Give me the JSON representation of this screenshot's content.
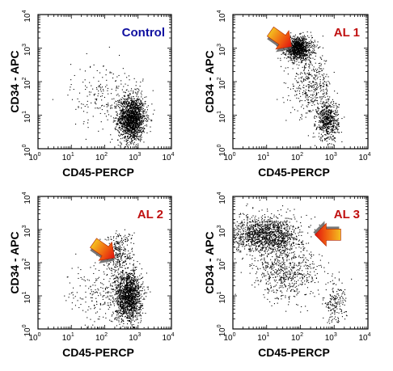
{
  "chart_data": [
    {
      "type": "scatter",
      "title": "Control",
      "title_color": "#1010a0",
      "xlabel": "CD45-PERCP",
      "ylabel": "CD34 - APC",
      "x_scale": "log",
      "y_scale": "log",
      "xlim": [
        1,
        10000
      ],
      "ylim": [
        1,
        10000
      ],
      "x_ticks": [
        {
          "base": "10",
          "exp": "0"
        },
        {
          "base": "10",
          "exp": "1"
        },
        {
          "base": "10",
          "exp": "2"
        },
        {
          "base": "10",
          "exp": "3"
        },
        {
          "base": "10",
          "exp": "4"
        }
      ],
      "y_ticks": [
        {
          "base": "10",
          "exp": "0"
        },
        {
          "base": "10",
          "exp": "1"
        },
        {
          "base": "10",
          "exp": "2"
        },
        {
          "base": "10",
          "exp": "3"
        },
        {
          "base": "10",
          "exp": "4"
        }
      ],
      "populations": [
        {
          "center": [
            630,
            8
          ],
          "spread": [
            0.2,
            0.33
          ],
          "share": 0.88,
          "description": "CD45-bright, CD34-negative leukocytes"
        },
        {
          "center": [
            120,
            40
          ],
          "spread": [
            0.55,
            0.5
          ],
          "share": 0.12,
          "description": "scattered events"
        }
      ],
      "arrow": null
    },
    {
      "type": "scatter",
      "title": "AL 1",
      "title_color": "#c01010",
      "xlabel": "CD45-PERCP",
      "ylabel": "CD34 - APC",
      "x_scale": "log",
      "y_scale": "log",
      "xlim": [
        1,
        10000
      ],
      "ylim": [
        1,
        10000
      ],
      "x_ticks": [
        {
          "base": "10",
          "exp": "0"
        },
        {
          "base": "10",
          "exp": "1"
        },
        {
          "base": "10",
          "exp": "2"
        },
        {
          "base": "10",
          "exp": "3"
        },
        {
          "base": "10",
          "exp": "4"
        }
      ],
      "y_ticks": [
        {
          "base": "10",
          "exp": "0"
        },
        {
          "base": "10",
          "exp": "1"
        },
        {
          "base": "10",
          "exp": "2"
        },
        {
          "base": "10",
          "exp": "3"
        },
        {
          "base": "10",
          "exp": "4"
        }
      ],
      "populations": [
        {
          "center": [
            85,
            1000
          ],
          "spread": [
            0.2,
            0.17
          ],
          "share": 0.5,
          "description": "CD45-dim, CD34-positive blasts"
        },
        {
          "center": [
            200,
            80
          ],
          "spread": [
            0.3,
            0.45
          ],
          "share": 0.2,
          "description": "bridging events"
        },
        {
          "center": [
            630,
            7
          ],
          "spread": [
            0.16,
            0.3
          ],
          "share": 0.3,
          "description": "CD45-bright, CD34-negative cells"
        }
      ],
      "arrow": {
        "tip": [
          50,
          1200
        ],
        "direction": "down-right"
      }
    },
    {
      "type": "scatter",
      "title": "AL 2",
      "title_color": "#c01010",
      "xlabel": "CD45-PERCP",
      "ylabel": "CD34 - APC",
      "x_scale": "log",
      "y_scale": "log",
      "xlim": [
        1,
        10000
      ],
      "ylim": [
        1,
        10000
      ],
      "x_ticks": [
        {
          "base": "10",
          "exp": "0"
        },
        {
          "base": "10",
          "exp": "1"
        },
        {
          "base": "10",
          "exp": "2"
        },
        {
          "base": "10",
          "exp": "3"
        },
        {
          "base": "10",
          "exp": "4"
        }
      ],
      "y_ticks": [
        {
          "base": "10",
          "exp": "0"
        },
        {
          "base": "10",
          "exp": "1"
        },
        {
          "base": "10",
          "exp": "2"
        },
        {
          "base": "10",
          "exp": "3"
        },
        {
          "base": "10",
          "exp": "4"
        }
      ],
      "populations": [
        {
          "center": [
            500,
            10
          ],
          "spread": [
            0.2,
            0.38
          ],
          "share": 0.75,
          "description": "CD45-bright, CD34-negative cells"
        },
        {
          "center": [
            250,
            200
          ],
          "spread": [
            0.22,
            0.35
          ],
          "share": 0.15,
          "description": "CD45-dim, CD34-positive blasts"
        },
        {
          "center": [
            60,
            10
          ],
          "spread": [
            0.45,
            0.5
          ],
          "share": 0.1,
          "description": "scattered events"
        }
      ],
      "arrow": {
        "tip": [
          180,
          150
        ],
        "direction": "down-right"
      }
    },
    {
      "type": "scatter",
      "title": "AL 3",
      "title_color": "#c01010",
      "xlabel": "CD45-PERCP",
      "ylabel": "CD34 - APC",
      "x_scale": "log",
      "y_scale": "log",
      "xlim": [
        1,
        10000
      ],
      "ylim": [
        1,
        10000
      ],
      "x_ticks": [
        {
          "base": "10",
          "exp": "0"
        },
        {
          "base": "10",
          "exp": "1"
        },
        {
          "base": "10",
          "exp": "2"
        },
        {
          "base": "10",
          "exp": "3"
        },
        {
          "base": "10",
          "exp": "4"
        }
      ],
      "y_ticks": [
        {
          "base": "10",
          "exp": "0"
        },
        {
          "base": "10",
          "exp": "1"
        },
        {
          "base": "10",
          "exp": "2"
        },
        {
          "base": "10",
          "exp": "3"
        },
        {
          "base": "10",
          "exp": "4"
        }
      ],
      "populations": [
        {
          "center": [
            10,
            700
          ],
          "spread": [
            0.5,
            0.28
          ],
          "share": 0.65,
          "description": "CD45-negative to dim, CD34-positive blasts"
        },
        {
          "center": [
            40,
            50
          ],
          "spread": [
            0.5,
            0.4
          ],
          "share": 0.27,
          "description": "spread events"
        },
        {
          "center": [
            1000,
            6
          ],
          "spread": [
            0.18,
            0.3
          ],
          "share": 0.08,
          "description": "CD45-bright, CD34-negative cells"
        }
      ],
      "arrow": {
        "tip": [
          300,
          700
        ],
        "direction": "left"
      }
    }
  ]
}
